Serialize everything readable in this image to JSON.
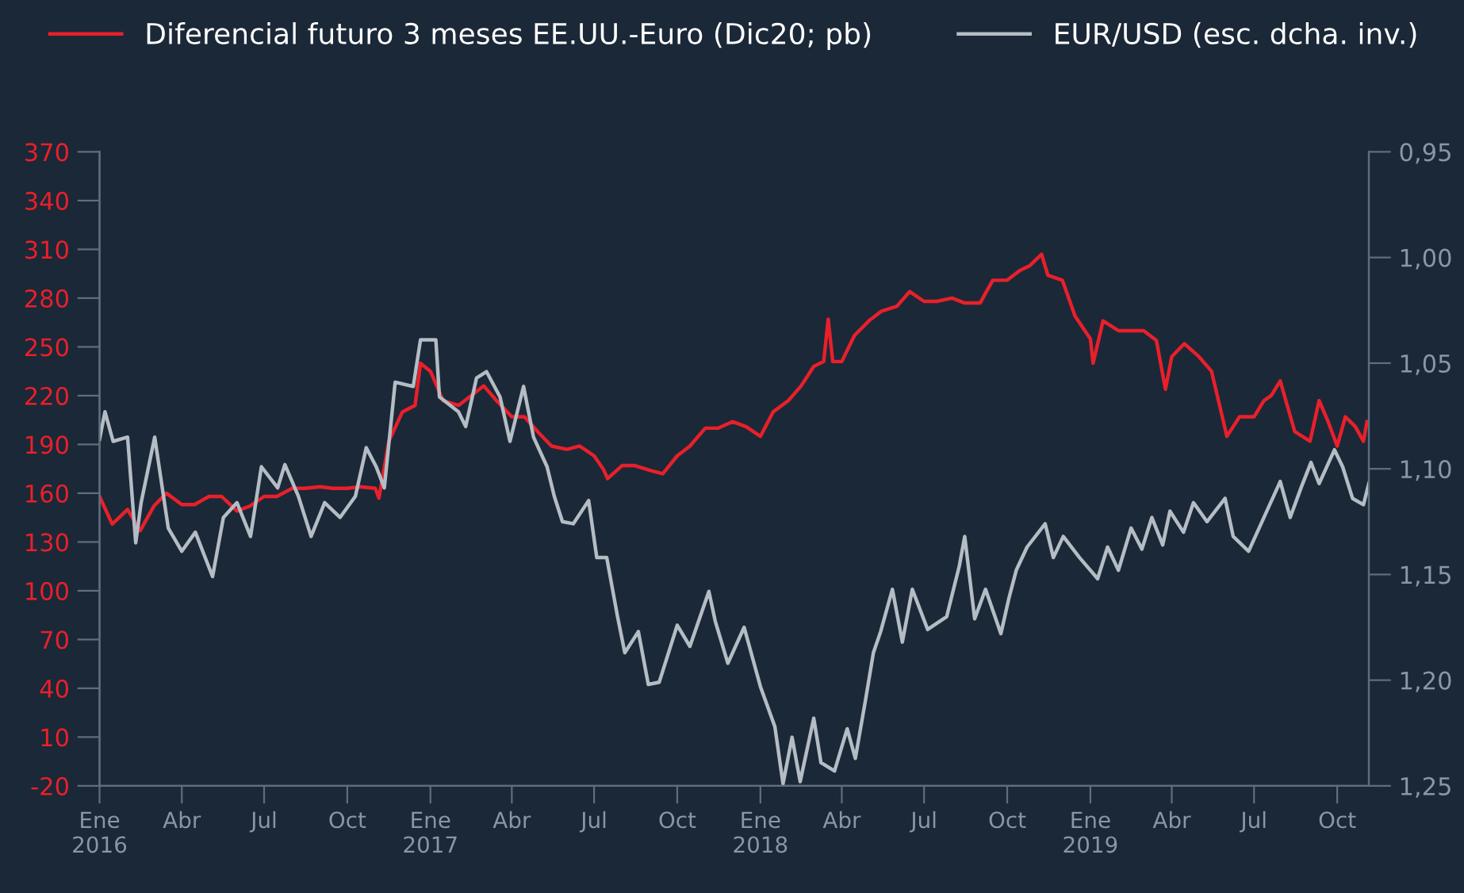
{
  "chart_data": {
    "type": "line",
    "legend": "top",
    "grid": false,
    "xlim": [
      "2016-01-01",
      "2019-11-05"
    ],
    "xticks": [
      {
        "value": "2016-01-01",
        "label": "Ene\n2016"
      },
      {
        "value": "2016-04-01",
        "label": "Abr"
      },
      {
        "value": "2016-07-01",
        "label": "Jul"
      },
      {
        "value": "2016-10-01",
        "label": "Oct"
      },
      {
        "value": "2017-01-01",
        "label": "Ene\n2017"
      },
      {
        "value": "2017-04-01",
        "label": "Abr"
      },
      {
        "value": "2017-07-01",
        "label": "Jul"
      },
      {
        "value": "2017-10-01",
        "label": "Oct"
      },
      {
        "value": "2018-01-01",
        "label": "Ene\n2018"
      },
      {
        "value": "2018-04-01",
        "label": "Abr"
      },
      {
        "value": "2018-07-01",
        "label": "Jul"
      },
      {
        "value": "2018-10-01",
        "label": "Oct"
      },
      {
        "value": "2019-01-01",
        "label": "Ene\n2019"
      },
      {
        "value": "2019-04-01",
        "label": "Abr"
      },
      {
        "value": "2019-07-01",
        "label": "Jul"
      },
      {
        "value": "2019-10-01",
        "label": "Oct"
      }
    ],
    "ylim": [
      -20,
      370
    ],
    "yticks": [
      -20,
      10,
      40,
      70,
      100,
      130,
      160,
      190,
      220,
      250,
      280,
      310,
      340,
      370
    ],
    "y2lim": [
      1.25,
      0.95
    ],
    "y2ticks": [
      {
        "value": 0.95,
        "label": "0,95"
      },
      {
        "value": 1.0,
        "label": "1,00"
      },
      {
        "value": 1.05,
        "label": "1,05"
      },
      {
        "value": 1.1,
        "label": "1,10"
      },
      {
        "value": 1.15,
        "label": "1,15"
      },
      {
        "value": 1.2,
        "label": "1,20"
      },
      {
        "value": 1.25,
        "label": "1,25"
      }
    ],
    "series": [
      {
        "name": "Diferencial futuro 3 meses EE.UU.-Euro (Dic20; pb)",
        "color": "#e8202a",
        "axis": "y",
        "x": [
          "2016-01-01",
          "2016-01-15",
          "2016-02-01",
          "2016-02-15",
          "2016-03-01",
          "2016-03-15",
          "2016-04-01",
          "2016-04-15",
          "2016-05-01",
          "2016-05-15",
          "2016-06-01",
          "2016-06-15",
          "2016-07-01",
          "2016-07-15",
          "2016-08-01",
          "2016-08-15",
          "2016-09-01",
          "2016-09-15",
          "2016-10-01",
          "2016-10-15",
          "2016-11-01",
          "2016-11-05",
          "2016-11-16",
          "2016-12-01",
          "2016-12-15",
          "2016-12-21",
          "2017-01-01",
          "2017-01-15",
          "2017-02-01",
          "2017-02-15",
          "2017-03-01",
          "2017-03-15",
          "2017-04-01",
          "2017-04-15",
          "2017-05-01",
          "2017-05-15",
          "2017-06-01",
          "2017-06-15",
          "2017-07-01",
          "2017-07-11",
          "2017-07-16",
          "2017-08-01",
          "2017-08-15",
          "2017-09-01",
          "2017-09-15",
          "2017-10-01",
          "2017-10-15",
          "2017-11-01",
          "2017-11-15",
          "2017-12-01",
          "2017-12-16",
          "2018-01-01",
          "2018-01-15",
          "2018-02-01",
          "2018-02-15",
          "2018-03-01",
          "2018-03-12",
          "2018-03-17",
          "2018-03-22",
          "2018-04-01",
          "2018-04-15",
          "2018-05-01",
          "2018-05-15",
          "2018-06-01",
          "2018-06-15",
          "2018-07-01",
          "2018-07-15",
          "2018-08-01",
          "2018-08-15",
          "2018-09-01",
          "2018-09-15",
          "2018-10-01",
          "2018-10-15",
          "2018-10-26",
          "2018-11-08",
          "2018-11-15",
          "2018-12-01",
          "2018-12-15",
          "2019-01-01",
          "2019-01-04",
          "2019-01-15",
          "2019-02-01",
          "2019-02-15",
          "2019-03-01",
          "2019-03-15",
          "2019-03-25",
          "2019-04-01",
          "2019-04-15",
          "2019-05-01",
          "2019-05-15",
          "2019-06-01",
          "2019-06-15",
          "2019-07-01",
          "2019-07-12",
          "2019-07-20",
          "2019-07-30",
          "2019-08-15",
          "2019-09-01",
          "2019-09-11",
          "2019-09-21",
          "2019-10-01",
          "2019-10-10",
          "2019-10-21",
          "2019-10-30",
          "2019-11-03"
        ],
        "values": [
          158,
          141,
          150,
          137,
          152,
          160,
          153,
          153,
          158,
          158,
          149,
          152,
          158,
          158,
          163,
          163,
          164,
          163,
          163,
          164,
          163,
          157,
          192,
          210,
          214,
          240,
          235,
          217,
          214,
          220,
          226,
          217,
          207,
          207,
          197,
          189,
          187,
          189,
          183,
          175,
          169,
          177,
          177,
          174,
          172,
          183,
          189,
          200,
          200,
          204,
          201,
          195,
          210,
          217,
          226,
          238,
          241,
          267,
          241,
          241,
          257,
          266,
          272,
          275,
          284,
          278,
          278,
          280,
          277,
          277,
          291,
          291,
          297,
          300,
          307,
          294,
          291,
          269,
          255,
          240,
          266,
          260,
          260,
          260,
          254,
          224,
          244,
          252,
          244,
          235,
          195,
          207,
          207,
          217,
          220,
          229,
          198,
          192,
          217,
          204,
          189,
          207,
          201,
          192,
          204
        ]
      },
      {
        "name": "EUR/USD (esc. dcha. inv.)",
        "color": "#b4bcc4",
        "axis": "y2",
        "x": [
          "2016-01-01",
          "2016-01-07",
          "2016-01-16",
          "2016-02-01",
          "2016-02-10",
          "2016-02-16",
          "2016-03-02",
          "2016-03-17",
          "2016-04-01",
          "2016-04-16",
          "2016-05-05",
          "2016-05-17",
          "2016-06-01",
          "2016-06-16",
          "2016-06-28",
          "2016-07-16",
          "2016-07-24",
          "2016-08-08",
          "2016-08-22",
          "2016-09-06",
          "2016-09-23",
          "2016-10-10",
          "2016-10-22",
          "2016-11-02",
          "2016-11-11",
          "2016-11-23",
          "2016-12-13",
          "2016-12-21",
          "2017-01-07",
          "2017-01-11",
          "2017-02-01",
          "2017-02-09",
          "2017-02-21",
          "2017-03-04",
          "2017-03-19",
          "2017-03-30",
          "2017-04-14",
          "2017-04-25",
          "2017-05-10",
          "2017-05-18",
          "2017-05-27",
          "2017-06-08",
          "2017-06-25",
          "2017-07-04",
          "2017-07-15",
          "2017-07-27",
          "2017-08-04",
          "2017-08-19",
          "2017-08-30",
          "2017-09-11",
          "2017-10-01",
          "2017-10-15",
          "2017-11-05",
          "2017-11-12",
          "2017-11-26",
          "2017-12-14",
          "2018-01-01",
          "2018-01-17",
          "2018-01-26",
          "2018-02-05",
          "2018-02-14",
          "2018-03-01",
          "2018-03-09",
          "2018-03-24",
          "2018-04-07",
          "2018-04-16",
          "2018-04-27",
          "2018-05-06",
          "2018-05-14",
          "2018-05-27",
          "2018-06-07",
          "2018-06-18",
          "2018-07-05",
          "2018-07-26",
          "2018-08-09",
          "2018-08-15",
          "2018-08-26",
          "2018-09-07",
          "2018-09-24",
          "2018-10-03",
          "2018-10-11",
          "2018-10-23",
          "2018-11-12",
          "2018-11-21",
          "2018-12-02",
          "2018-12-20",
          "2019-01-09",
          "2019-01-20",
          "2019-02-01",
          "2019-02-15",
          "2019-02-27",
          "2019-03-10",
          "2019-03-22",
          "2019-03-30",
          "2019-04-14",
          "2019-04-25",
          "2019-05-10",
          "2019-05-30",
          "2019-06-08",
          "2019-06-25",
          "2019-07-12",
          "2019-07-30",
          "2019-08-10",
          "2019-08-22",
          "2019-09-02",
          "2019-09-11",
          "2019-09-28",
          "2019-10-07",
          "2019-10-18",
          "2019-10-30",
          "2019-11-05"
        ],
        "values": [
          1.086,
          1.073,
          1.087,
          1.085,
          1.135,
          1.116,
          1.085,
          1.128,
          1.139,
          1.13,
          1.151,
          1.123,
          1.116,
          1.132,
          1.099,
          1.109,
          1.098,
          1.113,
          1.132,
          1.116,
          1.123,
          1.113,
          1.09,
          1.099,
          1.109,
          1.059,
          1.061,
          1.039,
          1.039,
          1.066,
          1.073,
          1.08,
          1.057,
          1.054,
          1.066,
          1.087,
          1.061,
          1.085,
          1.099,
          1.113,
          1.125,
          1.126,
          1.115,
          1.142,
          1.142,
          1.17,
          1.187,
          1.177,
          1.202,
          1.201,
          1.174,
          1.184,
          1.158,
          1.172,
          1.192,
          1.175,
          1.203,
          1.222,
          1.249,
          1.227,
          1.248,
          1.218,
          1.239,
          1.243,
          1.223,
          1.237,
          1.21,
          1.187,
          1.177,
          1.157,
          1.182,
          1.157,
          1.176,
          1.17,
          1.146,
          1.132,
          1.171,
          1.157,
          1.178,
          1.161,
          1.148,
          1.137,
          1.126,
          1.142,
          1.132,
          1.142,
          1.152,
          1.137,
          1.148,
          1.128,
          1.138,
          1.123,
          1.136,
          1.12,
          1.13,
          1.116,
          1.125,
          1.114,
          1.132,
          1.139,
          1.123,
          1.106,
          1.123,
          1.109,
          1.097,
          1.107,
          1.091,
          1.099,
          1.114,
          1.117,
          1.107
        ]
      }
    ]
  }
}
